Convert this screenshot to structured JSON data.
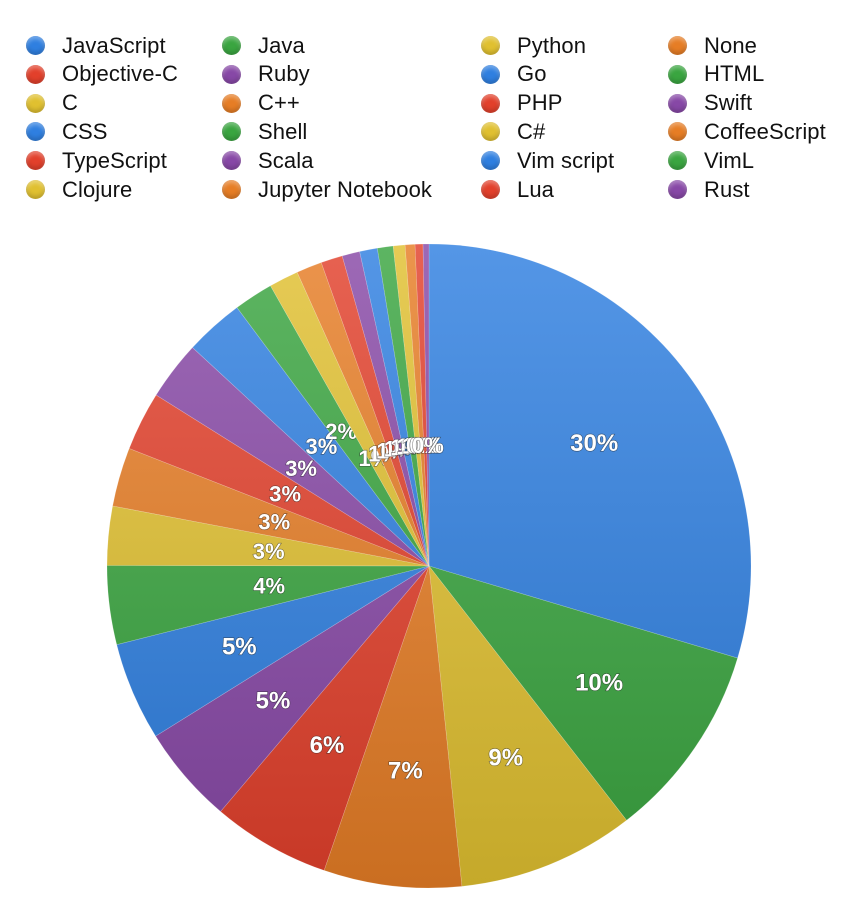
{
  "chart_data": {
    "type": "pie",
    "legend_position": "top",
    "slices": [
      {
        "label": "JavaScript",
        "value": 30,
        "value_label": "30%",
        "color": "#2f7fe0"
      },
      {
        "label": "Java",
        "value": 10,
        "value_label": "10%",
        "color": "#3aa540"
      },
      {
        "label": "Python",
        "value": 9,
        "value_label": "9%",
        "color": "#e0c030"
      },
      {
        "label": "None",
        "value": 7,
        "value_label": "7%",
        "color": "#e67d25"
      },
      {
        "label": "Objective-C",
        "value": 6,
        "value_label": "6%",
        "color": "#e2402b"
      },
      {
        "label": "Ruby",
        "value": 5,
        "value_label": "5%",
        "color": "#8748a6"
      },
      {
        "label": "Go",
        "value": 5,
        "value_label": "5%",
        "color": "#2f7fe0"
      },
      {
        "label": "HTML",
        "value": 4,
        "value_label": "4%",
        "color": "#3aa540"
      },
      {
        "label": "C",
        "value": 3,
        "value_label": "3%",
        "color": "#e0c030"
      },
      {
        "label": "C++",
        "value": 3,
        "value_label": "3%",
        "color": "#e67d25"
      },
      {
        "label": "PHP",
        "value": 3,
        "value_label": "3%",
        "color": "#e2402b"
      },
      {
        "label": "Swift",
        "value": 3,
        "value_label": "3%",
        "color": "#8748a6"
      },
      {
        "label": "CSS",
        "value": 3,
        "value_label": "3%",
        "color": "#2f7fe0"
      },
      {
        "label": "Shell",
        "value": 2,
        "value_label": "2%",
        "color": "#3aa540"
      },
      {
        "label": "C#",
        "value": 1.5,
        "value_label": "1%",
        "color": "#e0c030"
      },
      {
        "label": "CoffeeScript",
        "value": 1.3,
        "value_label": "1%",
        "color": "#e67d25"
      },
      {
        "label": "TypeScript",
        "value": 1.1,
        "value_label": "1%",
        "color": "#e2402b"
      },
      {
        "label": "Scala",
        "value": 0.9,
        "value_label": "1%",
        "color": "#8748a6"
      },
      {
        "label": "Vim script",
        "value": 0.9,
        "value_label": "1%",
        "color": "#2f7fe0"
      },
      {
        "label": "VimL",
        "value": 0.8,
        "value_label": "1%",
        "color": "#3aa540"
      },
      {
        "label": "Clojure",
        "value": 0.6,
        "value_label": "1%",
        "color": "#e0c030"
      },
      {
        "label": "Jupyter Notebook",
        "value": 0.5,
        "value_label": "0%",
        "color": "#e67d25"
      },
      {
        "label": "Lua",
        "value": 0.4,
        "value_label": "0%",
        "color": "#e2402b"
      },
      {
        "label": "Rust",
        "value": 0.3,
        "value_label": "0%",
        "color": "#8748a6"
      }
    ]
  }
}
